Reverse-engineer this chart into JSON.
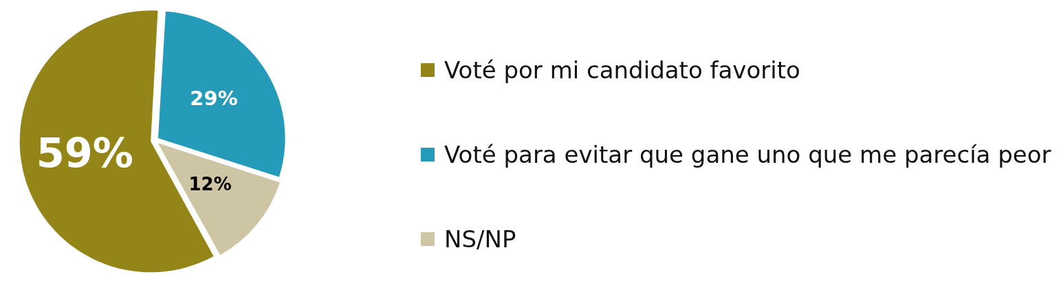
{
  "chart_data": {
    "type": "pie",
    "categories": [
      "Voté por mi candidato favorito",
      "Voté para evitar que gane uno que me parecía peor",
      "NS/NP"
    ],
    "values": [
      59,
      29,
      12
    ],
    "colors": [
      "#948519",
      "#259bba",
      "#cdc5a4"
    ],
    "value_labels": [
      "59%",
      "29%",
      "12%"
    ],
    "legend": "right"
  }
}
